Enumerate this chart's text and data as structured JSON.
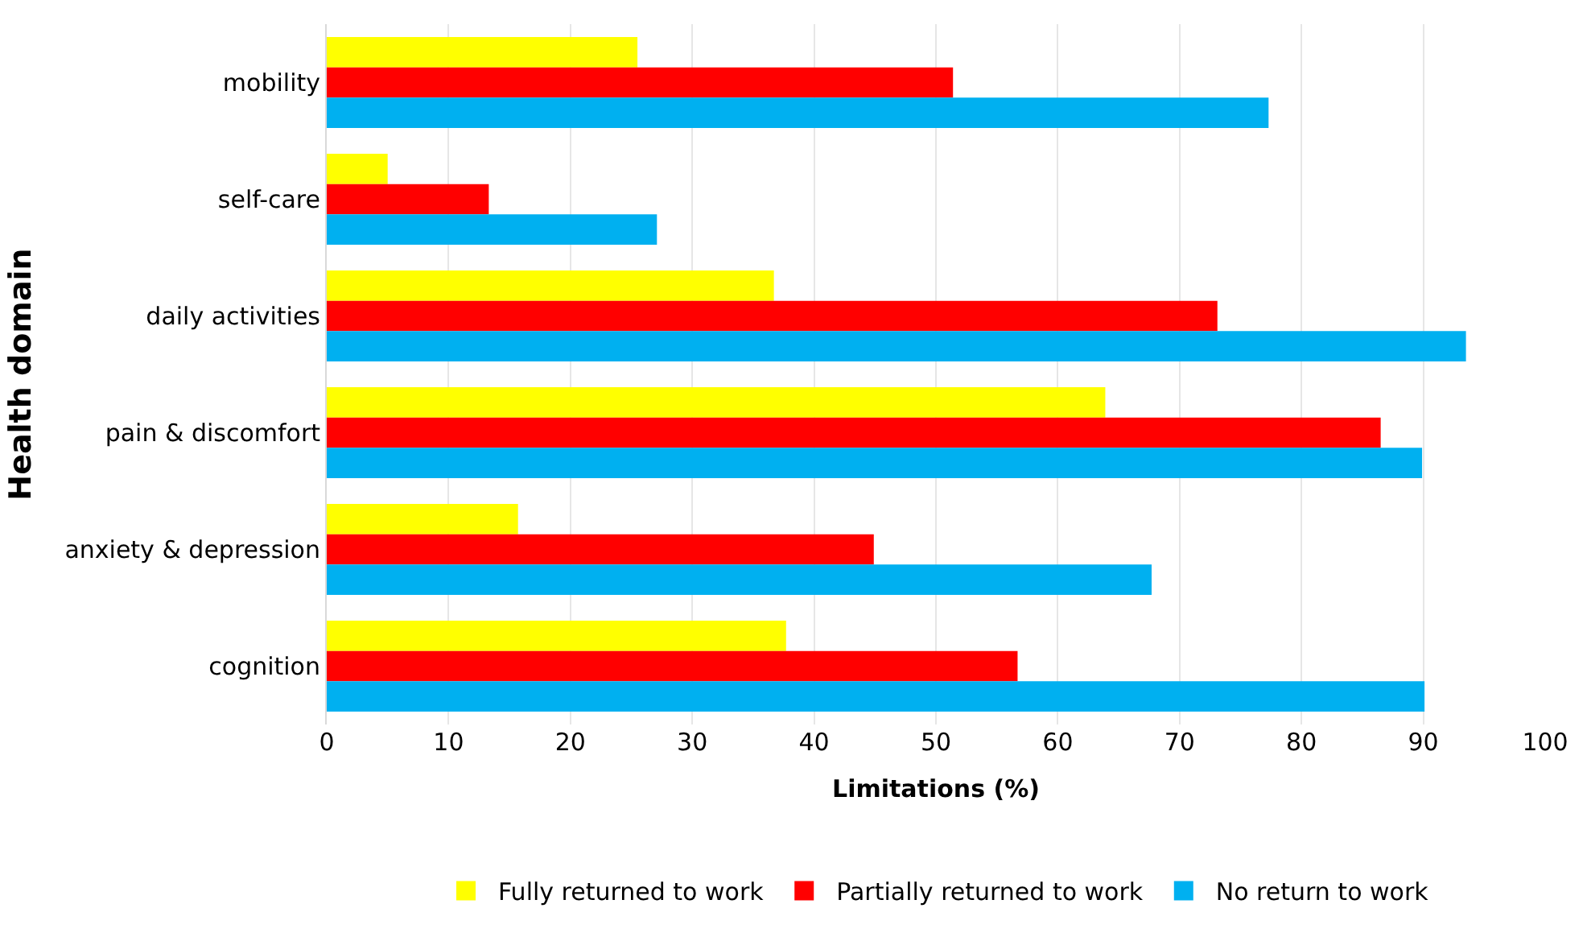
{
  "chart_data": {
    "type": "bar",
    "orientation": "horizontal",
    "xlabel": "Limitations (%)",
    "ylabel": "Health domain",
    "categories": [
      "mobility",
      "self-care",
      "daily activities",
      "pain & discomfort",
      "anxiety & depression",
      "cognition"
    ],
    "series": [
      {
        "name": "Fully returned to work",
        "color": "#ffff00",
        "values": [
          25.5,
          5,
          36.7,
          63.9,
          15.7,
          37.7
        ]
      },
      {
        "name": "Partially returned to work",
        "color": "#ff0000",
        "values": [
          51.4,
          13.3,
          73.1,
          86.5,
          44.9,
          56.7
        ]
      },
      {
        "name": "No return to work",
        "color": "#00b0f0",
        "values": [
          77.3,
          27.1,
          93.5,
          89.9,
          67.7,
          90.1
        ]
      }
    ],
    "xlim": [
      0,
      100
    ],
    "xticks": [
      0,
      10,
      20,
      30,
      40,
      50,
      60,
      70,
      80,
      90,
      100
    ],
    "grid": "x",
    "legend": "bottom"
  }
}
